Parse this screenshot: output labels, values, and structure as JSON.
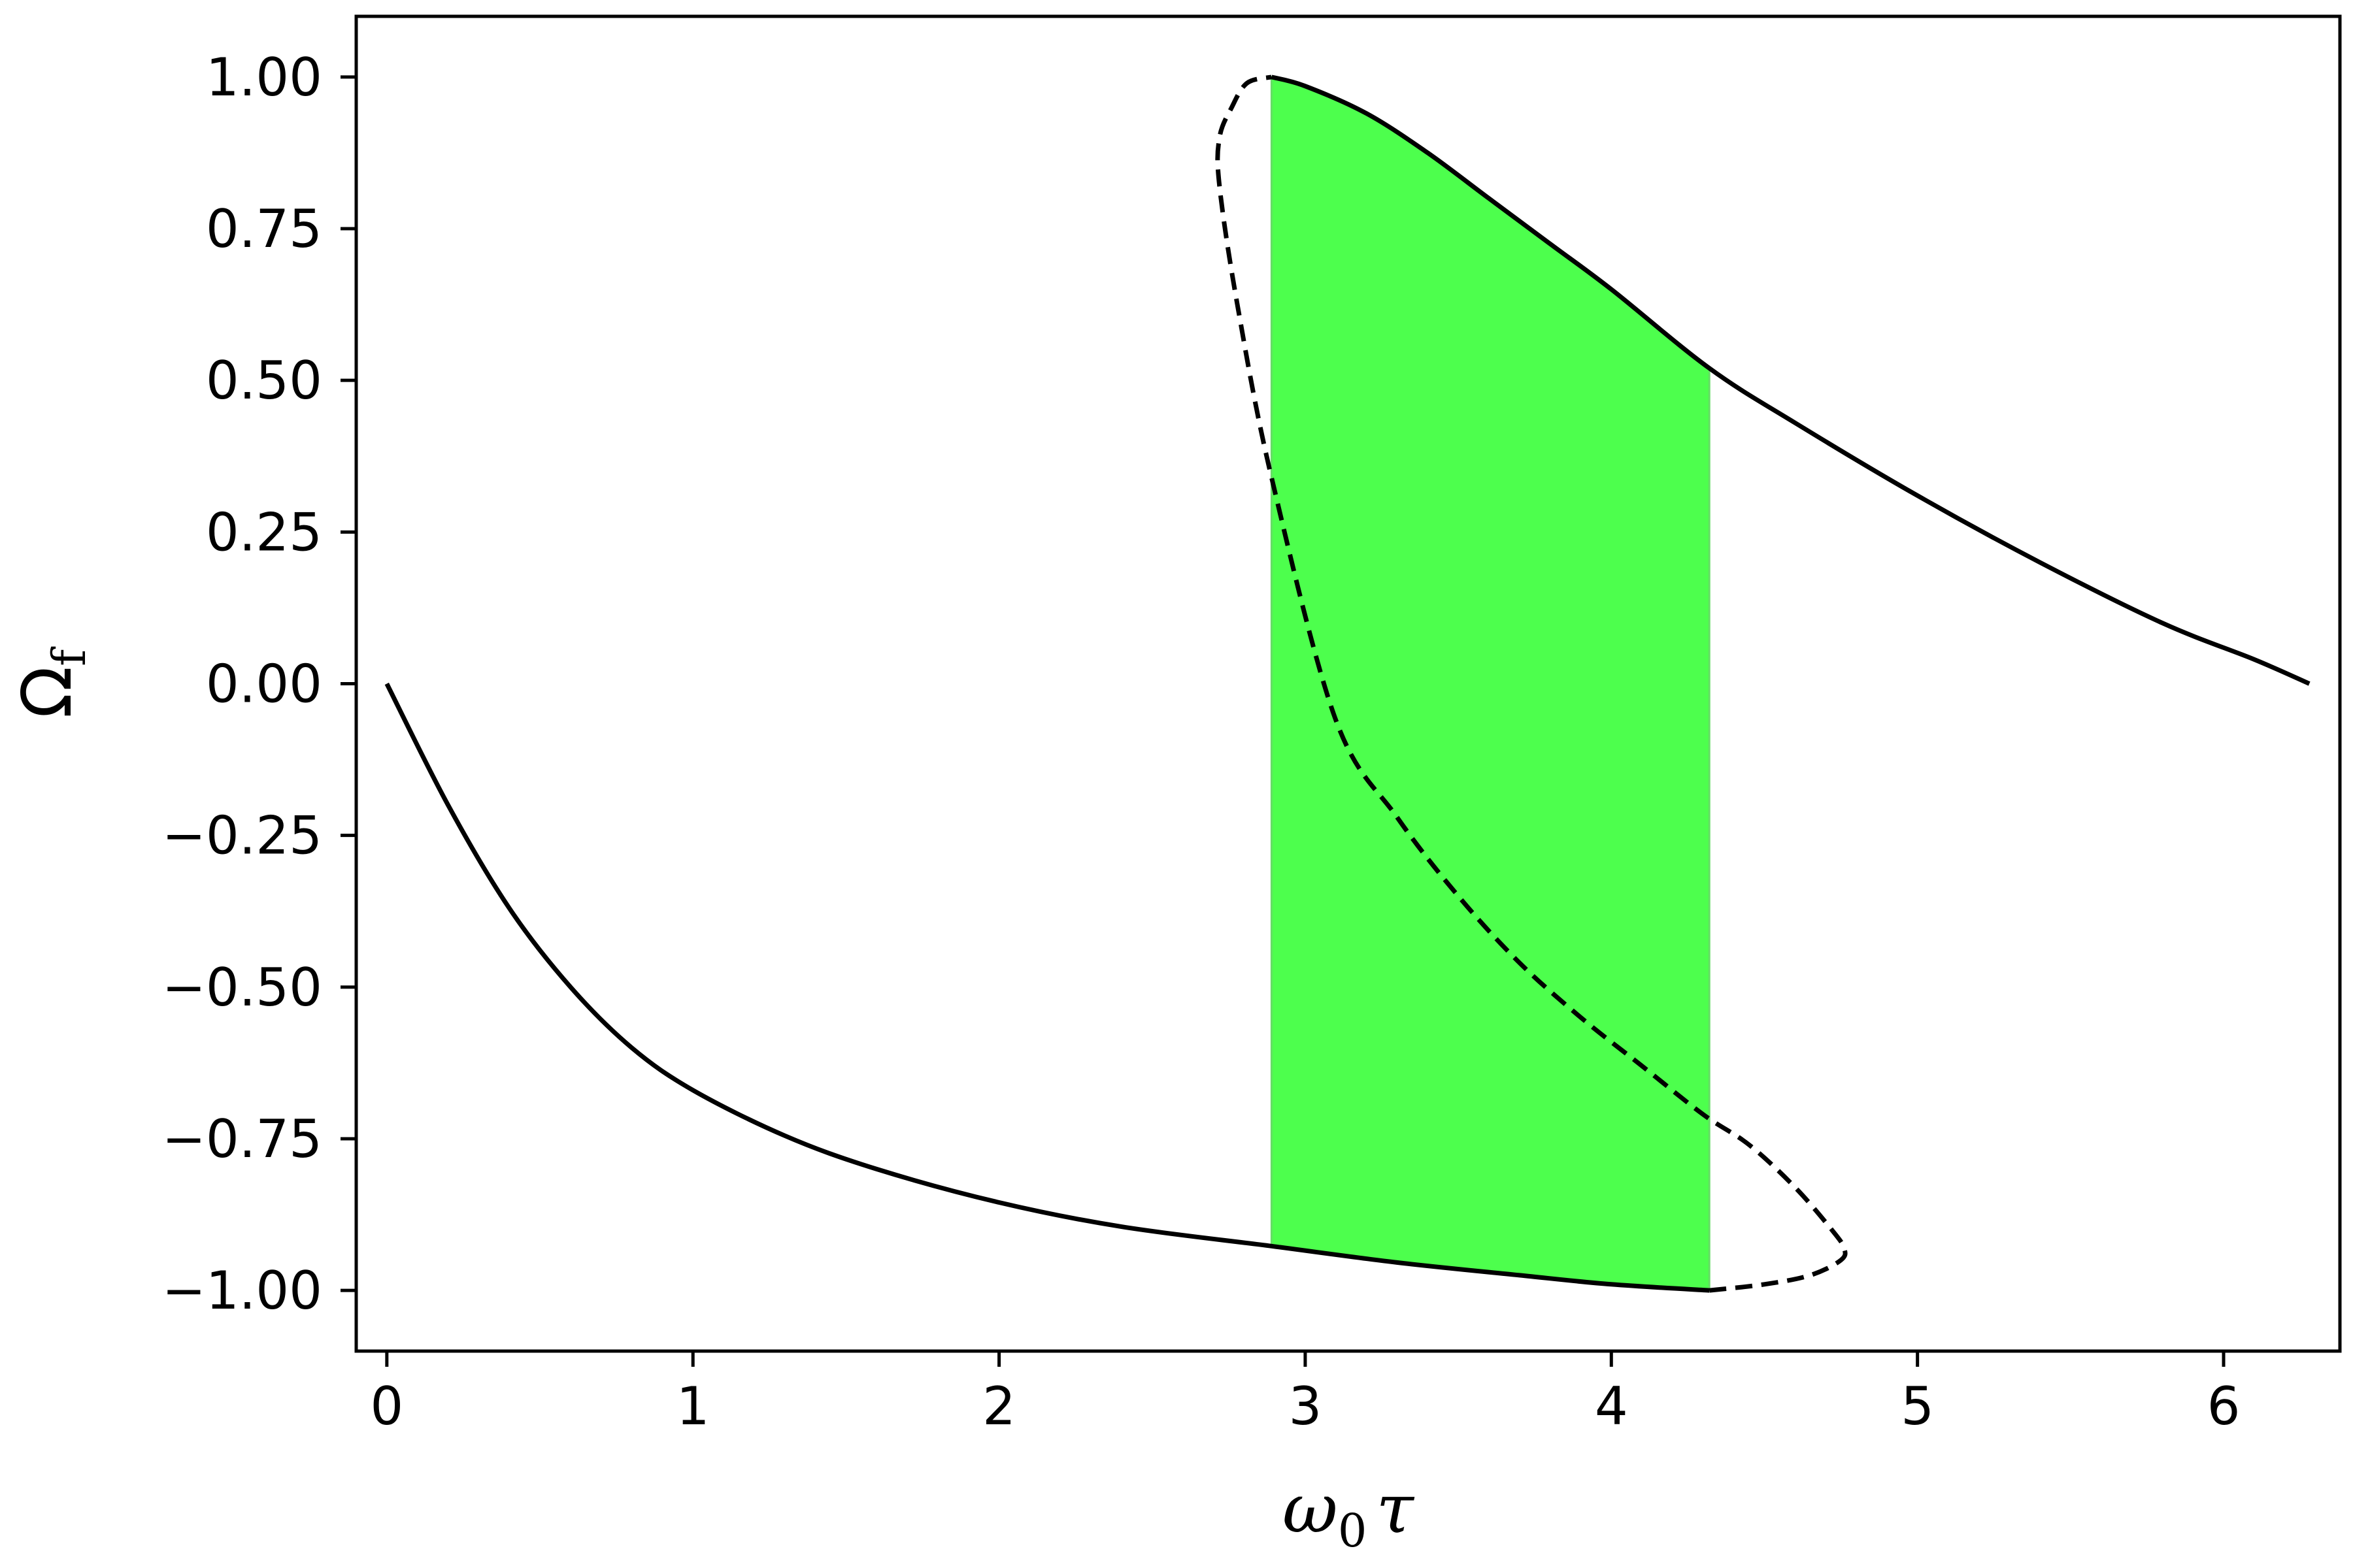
{
  "chart_data": {
    "type": "line",
    "title": "",
    "xlabel": "ω₀τ",
    "xlabel_main": "ω",
    "xlabel_sub": "0",
    "xlabel_tail": "τ",
    "ylabel": "Ω_f",
    "ylabel_main": "Ω",
    "ylabel_sub": "f",
    "xlim": [
      -0.1,
      6.38
    ],
    "ylim": [
      -1.1,
      1.1
    ],
    "xticks": [
      0,
      1,
      2,
      3,
      4,
      5,
      6
    ],
    "xtick_labels": [
      "0",
      "1",
      "2",
      "3",
      "4",
      "5",
      "6"
    ],
    "yticks": [
      1.0,
      0.75,
      0.5,
      0.25,
      0.0,
      -0.25,
      -0.5,
      -0.75,
      -1.0
    ],
    "ytick_labels": [
      "1.00",
      "0.75",
      "0.50",
      "0.25",
      "0.00",
      "−0.25",
      "−0.50",
      "−0.75",
      "−1.00"
    ],
    "grid": false,
    "colors": {
      "line": "#000000",
      "shade": "#4dff4d",
      "shade_edge": "#66dd66"
    },
    "shaded_region": {
      "x_start": 2.89,
      "x_end": 4.32
    },
    "series": [
      {
        "style": "solid",
        "x": [
          0.0,
          0.2,
          0.4,
          0.6,
          0.8,
          1.0,
          1.3,
          1.6,
          2.0,
          2.4,
          2.89,
          3.3,
          3.7,
          4.0,
          4.32
        ],
        "y": [
          0.0,
          -0.2,
          -0.37,
          -0.5,
          -0.6,
          -0.67,
          -0.745,
          -0.8,
          -0.855,
          -0.895,
          -0.927,
          -0.954,
          -0.975,
          -0.99,
          -1.0
        ]
      },
      {
        "style": "dashed",
        "x": [
          4.32,
          4.5,
          4.65,
          4.75,
          4.76,
          4.72,
          4.6,
          4.45,
          4.3,
          4.1,
          3.9,
          3.7,
          3.5,
          3.3,
          3.1,
          2.89,
          2.78,
          2.72,
          2.72,
          2.76,
          2.81,
          2.89
        ],
        "y": [
          -1.0,
          -0.99,
          -0.975,
          -0.95,
          -0.93,
          -0.9,
          -0.83,
          -0.76,
          -0.71,
          -0.63,
          -0.55,
          -0.46,
          -0.35,
          -0.22,
          -0.06,
          0.34,
          0.62,
          0.82,
          0.9,
          0.95,
          0.99,
          1.0
        ]
      },
      {
        "style": "solid",
        "x": [
          2.89,
          3.0,
          3.2,
          3.4,
          3.6,
          3.8,
          4.0,
          4.32,
          4.6,
          5.0,
          5.4,
          5.8,
          6.1,
          6.28
        ],
        "y": [
          1.0,
          0.985,
          0.94,
          0.875,
          0.8,
          0.725,
          0.65,
          0.52,
          0.43,
          0.31,
          0.2,
          0.1,
          0.04,
          0.0
        ]
      }
    ]
  }
}
